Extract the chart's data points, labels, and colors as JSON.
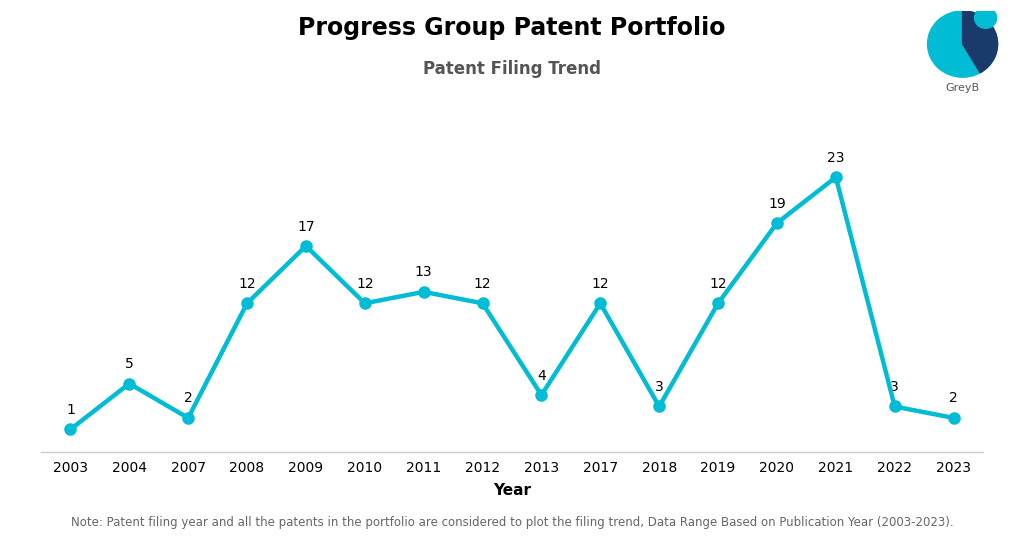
{
  "title": "Progress Group Patent Portfolio",
  "subtitle": "Patent Filing Trend",
  "xlabel": "Year",
  "footnote": "Note: Patent filing year and all the patents in the portfolio are considered to plot the filing trend, Data Range Based on Publication Year (2003-2023).",
  "years": [
    2003,
    2004,
    2007,
    2008,
    2009,
    2010,
    2011,
    2012,
    2013,
    2017,
    2018,
    2019,
    2020,
    2021,
    2022,
    2023
  ],
  "values": [
    1,
    5,
    2,
    12,
    17,
    12,
    13,
    12,
    4,
    12,
    3,
    12,
    19,
    23,
    3,
    2
  ],
  "line_color": "#00BCD4",
  "marker_color": "#00BCD4",
  "background_color": "#ffffff",
  "title_fontsize": 17,
  "subtitle_fontsize": 12,
  "label_fontsize": 10,
  "annotation_fontsize": 10,
  "footnote_fontsize": 8.5,
  "xlabel_fontsize": 11,
  "ylim": [
    -1,
    28
  ],
  "logo_circle_color": "#00BCD4",
  "logo_dark_color": "#1a3a6b",
  "logo_text_color": "#555555"
}
